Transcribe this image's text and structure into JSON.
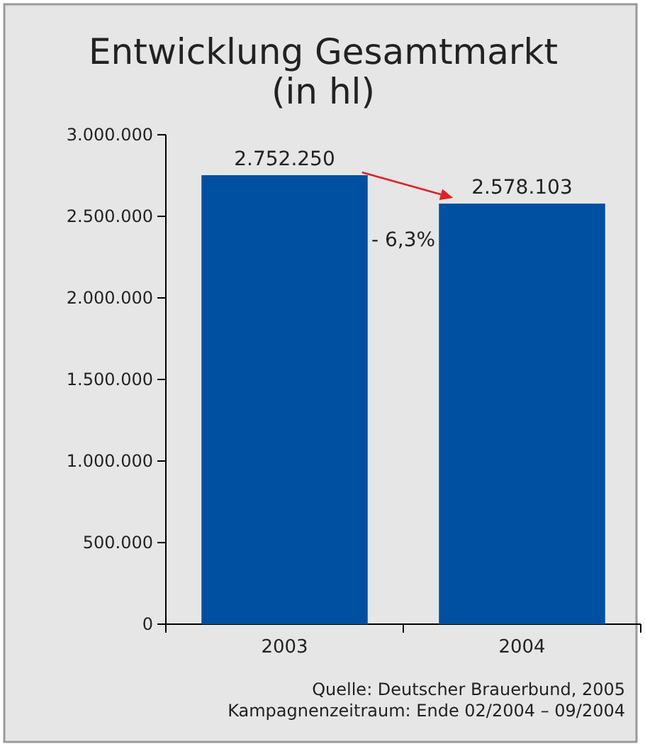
{
  "chart_data": {
    "type": "bar",
    "title": "Entwicklung Gesamtmarkt\n(in hl)",
    "categories": [
      "2003",
      "2004"
    ],
    "values": [
      2752250,
      2578103
    ],
    "value_labels": [
      "2.752.250",
      "2.578.103"
    ],
    "color": "#0050a2",
    "ylim": [
      0,
      3000000
    ],
    "yticks": [
      0,
      {
        "value": 500000,
        "label": "500.000"
      },
      {
        "value": 1000000,
        "label": "1.000.000"
      },
      {
        "value": 1500000,
        "label": "1.500.000"
      },
      {
        "value": 2000000,
        "label": "2.000.000"
      },
      {
        "value": 2500000,
        "label": "2.500.000"
      },
      {
        "value": 3000000,
        "label": "3.000.000"
      }
    ],
    "grid": false,
    "annotations": [
      "- 6,3%",
      "Quelle: Deutscher Brauerbund, 2005",
      "Kampagnenzeitraum: Ende 02/2004 – 09/2004"
    ]
  }
}
